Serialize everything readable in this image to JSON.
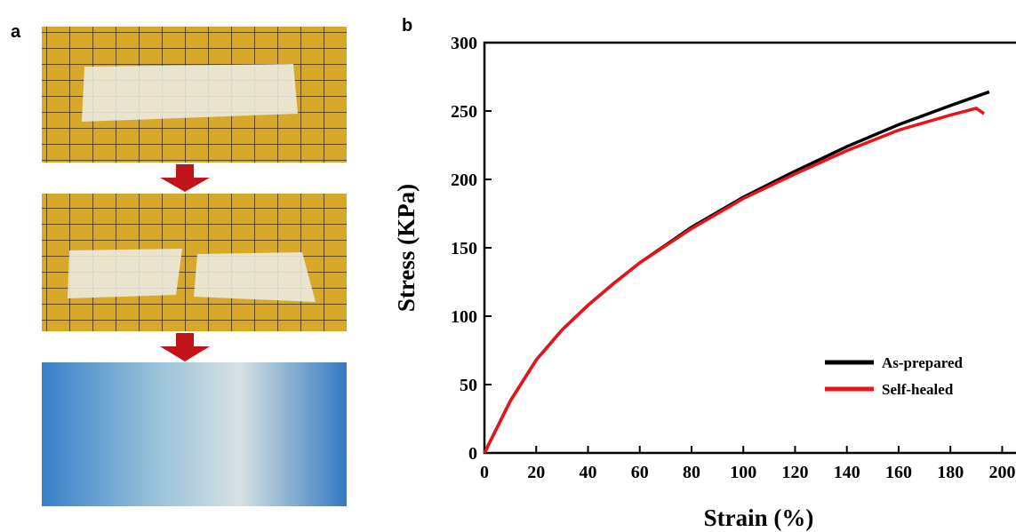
{
  "panel_labels": [
    "a",
    "b"
  ],
  "chart_data": {
    "type": "line",
    "xlabel": "Strain (%)",
    "ylabel": "Stress (KPa)",
    "xlim": [
      0,
      205
    ],
    "ylim": [
      0,
      300
    ],
    "xticks": [
      0,
      20,
      40,
      60,
      80,
      100,
      120,
      140,
      160,
      180,
      200
    ],
    "yticks": [
      0,
      50,
      100,
      150,
      200,
      250,
      300
    ],
    "legend": "lower right",
    "series": [
      {
        "name": "As-prepared",
        "color": "#000000",
        "x": [
          0,
          10,
          20,
          30,
          40,
          50,
          60,
          80,
          100,
          120,
          140,
          160,
          180,
          195
        ],
        "values": [
          0,
          38,
          68,
          90,
          108,
          124,
          139,
          165,
          187,
          206,
          224,
          240,
          254,
          264
        ]
      },
      {
        "name": "Self-healed",
        "color": "#e8141a",
        "x": [
          0,
          10,
          20,
          30,
          40,
          50,
          60,
          80,
          100,
          120,
          140,
          160,
          180,
          190,
          193
        ],
        "values": [
          0,
          38,
          68,
          90,
          108,
          124,
          139,
          164,
          186,
          204,
          221,
          236,
          247,
          252,
          248
        ]
      }
    ]
  }
}
